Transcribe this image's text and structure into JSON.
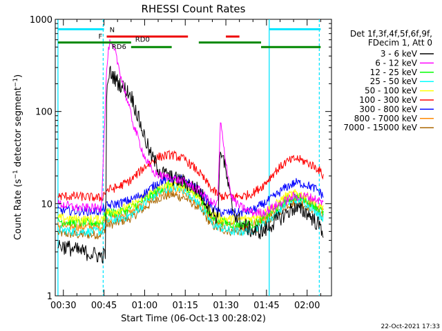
{
  "chart_data": {
    "type": "line",
    "title": "RHESSI Count Rates",
    "xlabel": "Start Time (06-Oct-13 00:28:02)",
    "ylabel": "Count Rate (s⁻¹ detector segment⁻¹)",
    "ylabel_main": "Count Rate (s",
    "ylabel_sup1": "−1",
    "ylabel_mid": " detector segment",
    "ylabel_sup2": "−1",
    "ylabel_end": ")",
    "y_scale": "log",
    "ylim": [
      1,
      1000
    ],
    "xlim_minutes": [
      27,
      129
    ],
    "x_ticks": [
      {
        "label": "00:30",
        "minute": 30
      },
      {
        "label": "00:45",
        "minute": 45
      },
      {
        "label": "01:00",
        "minute": 60
      },
      {
        "label": "01:15",
        "minute": 75
      },
      {
        "label": "01:30",
        "minute": 90
      },
      {
        "label": "01:45",
        "minute": 105
      },
      {
        "label": "02:00",
        "minute": 120
      }
    ],
    "y_ticks": [
      {
        "label": "1",
        "value": 1
      },
      {
        "label": "10",
        "value": 10
      },
      {
        "label": "100",
        "value": 100
      },
      {
        "label": "1000",
        "value": 1000
      }
    ],
    "grid": false,
    "legend": {
      "position": "right",
      "header": [
        "Det 1f,3f,4f,5f,6f,9f,",
        "FDecim 1, Att 0"
      ]
    },
    "series": [
      {
        "name": "3 - 6 keV",
        "color": "#000000",
        "x": [
          28,
          35,
          44,
          45.5,
          46,
          47,
          50,
          55,
          58,
          62,
          66,
          70,
          75,
          80,
          85,
          87,
          88,
          89,
          92,
          94,
          96,
          100,
          104,
          107,
          110,
          115,
          120,
          124,
          126
        ],
        "y": [
          3.6,
          3.1,
          2.7,
          2.8,
          150,
          270,
          210,
          150,
          80,
          35,
          22,
          19,
          17,
          14,
          8,
          7,
          40,
          32,
          10,
          7,
          6,
          5,
          5,
          6,
          7,
          9,
          8,
          6,
          5
        ]
      },
      {
        "name": "6 - 12 keV",
        "color": "#ff00ff",
        "x": [
          28,
          35,
          44,
          46,
          47,
          49,
          52,
          56,
          60,
          63,
          66,
          70,
          75,
          80,
          85,
          87,
          88,
          89,
          92,
          94,
          96,
          100,
          104,
          107,
          110,
          115,
          120,
          124,
          126
        ],
        "y": [
          10,
          9,
          9,
          300,
          550,
          450,
          200,
          70,
          32,
          22,
          20,
          19,
          17,
          14,
          10,
          10,
          80,
          45,
          12,
          10,
          9,
          8,
          8,
          9,
          10,
          12,
          12,
          11,
          10
        ]
      },
      {
        "name": "12 - 25 keV",
        "color": "#00ff00",
        "x": [
          28,
          35,
          44,
          46,
          50,
          55,
          60,
          65,
          70,
          75,
          80,
          85,
          88,
          92,
          96,
          100,
          104,
          108,
          112,
          116,
          120,
          124,
          126
        ],
        "y": [
          6.5,
          6.2,
          6.2,
          8,
          8,
          9,
          11,
          14,
          17,
          16,
          12,
          7,
          6.5,
          6,
          6,
          6,
          7,
          8.5,
          11,
          12,
          11,
          9,
          8
        ]
      },
      {
        "name": "25 - 50 keV",
        "color": "#00ffff",
        "x": [
          28,
          35,
          44,
          46,
          50,
          55,
          60,
          65,
          70,
          75,
          80,
          85,
          88,
          92,
          96,
          100,
          104,
          108,
          112,
          116,
          120,
          124,
          126
        ],
        "y": [
          5.2,
          5,
          5,
          6.5,
          6.8,
          7.5,
          10,
          13,
          15,
          14,
          10,
          6,
          5.5,
          5,
          5,
          5.2,
          6,
          7.5,
          10,
          11,
          10,
          8,
          7
        ]
      },
      {
        "name": "50 - 100 keV",
        "color": "#ffff00",
        "x": [
          28,
          35,
          44,
          46,
          50,
          55,
          60,
          65,
          70,
          75,
          80,
          85,
          88,
          92,
          96,
          100,
          104,
          108,
          112,
          116,
          120,
          124,
          126
        ],
        "y": [
          7,
          6.8,
          6.8,
          8,
          8.5,
          9.5,
          12,
          15,
          16,
          15,
          12,
          8,
          7,
          6.8,
          6.8,
          7,
          8,
          9.5,
          12,
          13,
          12,
          10,
          9
        ]
      },
      {
        "name": "100 - 300 keV",
        "color": "#ff0000",
        "x": [
          28,
          35,
          44,
          46,
          50,
          55,
          60,
          65,
          70,
          75,
          80,
          85,
          88,
          92,
          96,
          100,
          104,
          108,
          112,
          116,
          120,
          124,
          126
        ],
        "y": [
          12,
          12,
          11.5,
          14,
          15,
          18,
          25,
          32,
          34,
          30,
          22,
          14,
          12,
          12,
          12,
          13,
          16,
          22,
          28,
          31,
          28,
          24,
          20
        ]
      },
      {
        "name": "300 - 800 keV",
        "color": "#0000ff",
        "x": [
          28,
          35,
          44,
          46,
          50,
          55,
          60,
          65,
          70,
          75,
          80,
          85,
          88,
          92,
          96,
          100,
          104,
          108,
          112,
          116,
          120,
          124,
          126
        ],
        "y": [
          8.5,
          8.3,
          8.3,
          9.5,
          10,
          11,
          13,
          17,
          19,
          18,
          14,
          9,
          8,
          8,
          8,
          8.5,
          10,
          12,
          15,
          17,
          16,
          14,
          12
        ]
      },
      {
        "name": "800 - 7000 keV",
        "color": "#ff8800",
        "x": [
          28,
          35,
          44,
          46,
          50,
          55,
          60,
          65,
          70,
          75,
          80,
          85,
          88,
          92,
          96,
          100,
          104,
          108,
          112,
          116,
          120,
          124,
          126
        ],
        "y": [
          5.8,
          5.6,
          5.6,
          6.8,
          7.2,
          8,
          10,
          13,
          14,
          13,
          10,
          6.5,
          6,
          5.7,
          5.7,
          6,
          7,
          8.5,
          10.5,
          11.5,
          10.5,
          9,
          8
        ]
      },
      {
        "name": "7000 - 15000 keV",
        "color": "#aa6600",
        "x": [
          28,
          35,
          44,
          46,
          50,
          55,
          60,
          65,
          70,
          75,
          80,
          85,
          88,
          92,
          96,
          100,
          104,
          108,
          112,
          116,
          120,
          124,
          126
        ],
        "y": [
          4.8,
          4.6,
          4.6,
          5.8,
          6.2,
          7,
          9,
          11.5,
          12.5,
          11.5,
          9,
          5.8,
          5.3,
          5,
          5,
          5.2,
          6,
          7.5,
          9.5,
          10.5,
          9.5,
          8,
          7
        ]
      }
    ],
    "vertical_markers": [
      {
        "minute": 28,
        "style": "solid",
        "color": "#00e5ff"
      },
      {
        "minute": 44.7,
        "style": "dashed",
        "color": "#00e5ff"
      },
      {
        "minute": 106,
        "style": "solid",
        "color": "#00e5ff"
      },
      {
        "minute": 124.5,
        "style": "dashed",
        "color": "#00e5ff"
      }
    ],
    "flag_bars": [
      {
        "label": "N",
        "color": "#00e5ff",
        "y_value": 780,
        "segments": [
          [
            28,
            45
          ],
          [
            106,
            125
          ]
        ]
      },
      {
        "label": "F",
        "color": "#ee0000",
        "y_value": 650,
        "segments": [
          [
            46,
            76
          ],
          [
            90,
            95
          ]
        ]
      },
      {
        "label": "RD0",
        "color": "#008800",
        "y_value": 560,
        "segments": [
          [
            28,
            55
          ],
          [
            80,
            103
          ]
        ]
      },
      {
        "label": "RD6",
        "color": "#008800",
        "y_value": 500,
        "segments": [
          [
            55,
            70
          ],
          [
            103,
            125
          ]
        ]
      }
    ],
    "footer_date": "22-Oct-2021 17:33"
  }
}
